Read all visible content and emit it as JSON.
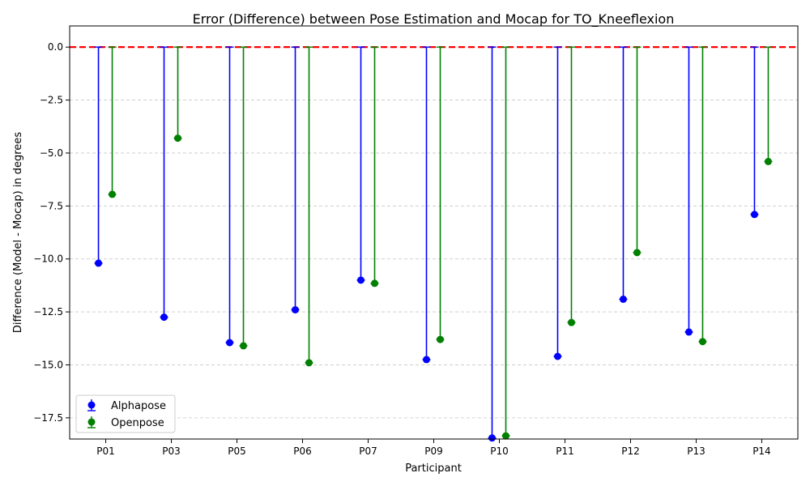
{
  "chart_data": {
    "type": "scatter",
    "title": "Error (Difference) between Pose Estimation and Mocap for TO_Kneeflexion",
    "xlabel": "Participant",
    "ylabel": "Difference (Model - Mocap) in degrees",
    "categories": [
      "P01",
      "P03",
      "P05",
      "P06",
      "P07",
      "P09",
      "P10",
      "P11",
      "P12",
      "P13",
      "P14"
    ],
    "series": [
      {
        "name": "Alphapose",
        "color": "#0000ff",
        "values": [
          -10.2,
          -12.75,
          -13.95,
          -12.4,
          -11.0,
          -14.75,
          -18.45,
          -14.6,
          -11.9,
          -13.45,
          -7.9
        ]
      },
      {
        "name": "Openpose",
        "color": "#008000",
        "values": [
          -6.95,
          -4.3,
          -14.1,
          -14.9,
          -11.15,
          -13.8,
          -18.35,
          -13.0,
          -9.7,
          -13.9,
          -5.4
        ]
      }
    ],
    "ylim": [
      -18.5,
      1.0
    ],
    "yticks": [
      "0.0",
      "−2.5",
      "−5.0",
      "−7.5",
      "−10.0",
      "−12.5",
      "−15.0",
      "−17.5"
    ],
    "reference_line": {
      "y": 0,
      "color": "#ff0000",
      "style": "dashed"
    },
    "grid": "y-dashed",
    "legend": "lower-left"
  }
}
